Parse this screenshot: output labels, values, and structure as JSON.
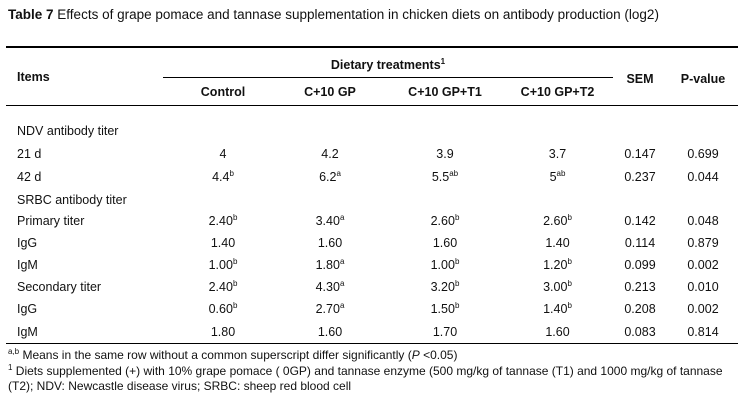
{
  "caption": {
    "label": "Table 7",
    "text": "Effects of grape pomace and tannase supplementation in chicken diets on antibody production (log2)"
  },
  "header": {
    "items": "Items",
    "dietary": "Dietary treatments",
    "dietary_sup": "1",
    "columns": [
      "Control",
      "C+10 GP",
      "C+10 GP+T1",
      "C+10 GP+T2"
    ],
    "sem": "SEM",
    "pvalue": "P-value"
  },
  "rows": [
    {
      "label": "NDV antibody titer",
      "section": true
    },
    {
      "label": "21 d",
      "values": [
        {
          "v": "4",
          "s": ""
        },
        {
          "v": "4.2",
          "s": ""
        },
        {
          "v": "3.9",
          "s": ""
        },
        {
          "v": "3.7",
          "s": ""
        }
      ],
      "sem": "0.147",
      "p": "0.699"
    },
    {
      "label": "42 d",
      "values": [
        {
          "v": "4.4",
          "s": "b"
        },
        {
          "v": "6.2",
          "s": "a"
        },
        {
          "v": "5.5",
          "s": "ab"
        },
        {
          "v": "5",
          "s": "ab"
        }
      ],
      "sem": "0.237",
      "p": "0.044"
    },
    {
      "label": "SRBC antibody titer",
      "section": true
    },
    {
      "label": "Primary titer",
      "values": [
        {
          "v": "2.40",
          "s": "b"
        },
        {
          "v": "3.40",
          "s": "a"
        },
        {
          "v": "2.60",
          "s": "b"
        },
        {
          "v": "2.60",
          "s": "b"
        }
      ],
      "sem": "0.142",
      "p": "0.048"
    },
    {
      "label": "IgG",
      "values": [
        {
          "v": "1.40",
          "s": ""
        },
        {
          "v": "1.60",
          "s": ""
        },
        {
          "v": "1.60",
          "s": ""
        },
        {
          "v": "1.40",
          "s": ""
        }
      ],
      "sem": "0.114",
      "p": "0.879"
    },
    {
      "label": "IgM",
      "values": [
        {
          "v": "1.00",
          "s": "b"
        },
        {
          "v": "1.80",
          "s": "a"
        },
        {
          "v": "1.00",
          "s": "b"
        },
        {
          "v": "1.20",
          "s": "b"
        }
      ],
      "sem": "0.099",
      "p": "0.002"
    },
    {
      "label": "Secondary titer",
      "values": [
        {
          "v": "2.40",
          "s": "b"
        },
        {
          "v": "4.30",
          "s": "a"
        },
        {
          "v": "3.20",
          "s": "b"
        },
        {
          "v": "3.00",
          "s": "b"
        }
      ],
      "sem": "0.213",
      "p": "0.010"
    },
    {
      "label": "IgG",
      "values": [
        {
          "v": "0.60",
          "s": "b"
        },
        {
          "v": "2.70",
          "s": "a"
        },
        {
          "v": "1.50",
          "s": "b"
        },
        {
          "v": "1.40",
          "s": "b"
        }
      ],
      "sem": "0.208",
      "p": "0.002"
    },
    {
      "label": "IgM",
      "values": [
        {
          "v": "1.80",
          "s": ""
        },
        {
          "v": "1.60",
          "s": ""
        },
        {
          "v": "1.70",
          "s": ""
        },
        {
          "v": "1.60",
          "s": ""
        }
      ],
      "sem": "0.083",
      "p": "0.814"
    }
  ],
  "footnotes": {
    "note1_sup": "a,b",
    "note1_text": " Means in the same row without a common superscript differ significantly (",
    "note1_p": "P",
    "note1_end": " <0.05)",
    "note2_sup": "1",
    "note2_text": " Diets supplemented (+) with 10% grape pomace ( 0GP) and tannase enzyme (500 mg/kg of tannase (T1) and 1000 mg/kg of tannase (T2); NDV: Newcastle disease virus; SRBC: sheep red blood cell"
  }
}
